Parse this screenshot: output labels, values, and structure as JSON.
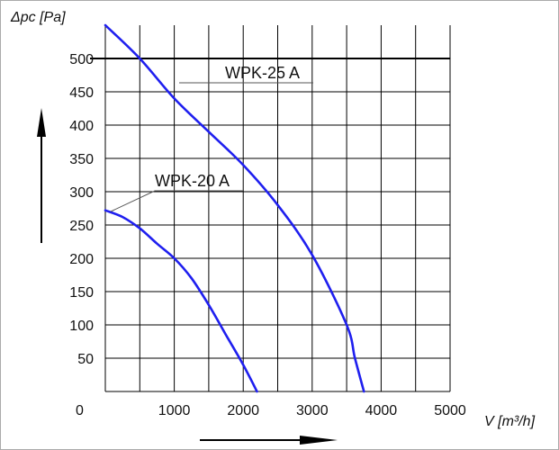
{
  "chart_data": {
    "type": "line",
    "ylabel": "Δpc [Pa]",
    "xlabel": "V [m³/h]",
    "origin_label": "0",
    "xlim": [
      0,
      5000
    ],
    "ylim": [
      0,
      550
    ],
    "x_ticks": [
      1000,
      2000,
      3000,
      4000,
      5000
    ],
    "y_ticks": [
      50,
      100,
      150,
      200,
      250,
      300,
      350,
      400,
      450,
      500
    ],
    "grid": true,
    "reference_line_y": 500,
    "series": [
      {
        "name": "WPK-25 A",
        "x": [
          0,
          500,
          1000,
          1500,
          2000,
          2500,
          3000,
          3500,
          3620,
          3750
        ],
        "y": [
          550,
          500,
          440,
          390,
          340,
          280,
          205,
          100,
          50,
          0
        ]
      },
      {
        "name": "WPK-20 A",
        "x": [
          0,
          250,
          500,
          750,
          1000,
          1250,
          1500,
          1750,
          2000,
          2200
        ],
        "y": [
          272,
          262,
          245,
          222,
          200,
          170,
          130,
          85,
          40,
          0
        ]
      }
    ],
    "colors": {
      "curve": "#1f1fef",
      "grid": "#000000",
      "background": "#ffffff",
      "frame": "#aaaaaa"
    }
  }
}
